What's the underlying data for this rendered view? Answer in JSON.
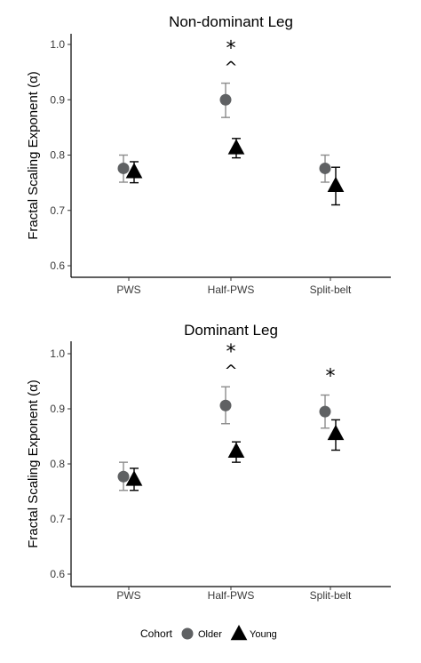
{
  "chart_data": [
    {
      "type": "scatter",
      "title": "Non-dominant Leg",
      "xlabel": "",
      "ylabel": "Fractal Scaling Exponent (α)",
      "categories": [
        "PWS",
        "Half-PWS",
        "Split-belt"
      ],
      "ylim": [
        0.6,
        1.0
      ],
      "yticks": [
        "0.6",
        "0.7",
        "0.8",
        "0.9",
        "1.0"
      ],
      "grid": false,
      "series": [
        {
          "name": "Older",
          "marker": "circle",
          "color": "#5f6163",
          "errcolor": "#8c8c8c",
          "values": [
            0.776,
            0.9,
            0.776
          ],
          "err_low": [
            0.751,
            0.868,
            0.751
          ],
          "err_high": [
            0.8,
            0.93,
            0.8
          ]
        },
        {
          "name": "Young",
          "marker": "triangle",
          "color": "#000000",
          "errcolor": "#000000",
          "values": [
            0.77,
            0.813,
            0.745
          ],
          "err_low": [
            0.75,
            0.795,
            0.71
          ],
          "err_high": [
            0.788,
            0.83,
            0.778
          ]
        }
      ],
      "annotations": [
        {
          "category": "Half-PWS",
          "lines": [
            "*",
            "^"
          ]
        }
      ]
    },
    {
      "type": "scatter",
      "title": "Dominant Leg",
      "xlabel": "",
      "ylabel": "Fractal Scaling Exponent (α)",
      "categories": [
        "PWS",
        "Half-PWS",
        "Split-belt"
      ],
      "ylim": [
        0.6,
        1.0
      ],
      "yticks": [
        "0.6",
        "0.7",
        "0.8",
        "0.9",
        "1.0"
      ],
      "grid": false,
      "series": [
        {
          "name": "Older",
          "marker": "circle",
          "color": "#5f6163",
          "errcolor": "#8c8c8c",
          "values": [
            0.777,
            0.906,
            0.895
          ],
          "err_low": [
            0.752,
            0.873,
            0.865
          ],
          "err_high": [
            0.803,
            0.94,
            0.925
          ]
        },
        {
          "name": "Young",
          "marker": "triangle",
          "color": "#000000",
          "errcolor": "#000000",
          "values": [
            0.772,
            0.823,
            0.855
          ],
          "err_low": [
            0.752,
            0.803,
            0.825
          ],
          "err_high": [
            0.792,
            0.84,
            0.88
          ]
        }
      ],
      "annotations": [
        {
          "category": "Half-PWS",
          "lines": [
            "*",
            "^"
          ]
        },
        {
          "category": "Split-belt",
          "lines": [
            "*"
          ]
        }
      ]
    }
  ],
  "legend": {
    "title": "Cohort",
    "placement": "bottom",
    "items": [
      {
        "label": "Older",
        "marker": "circle",
        "color": "#5f6163"
      },
      {
        "label": "Young",
        "marker": "triangle",
        "color": "#000000"
      }
    ]
  }
}
